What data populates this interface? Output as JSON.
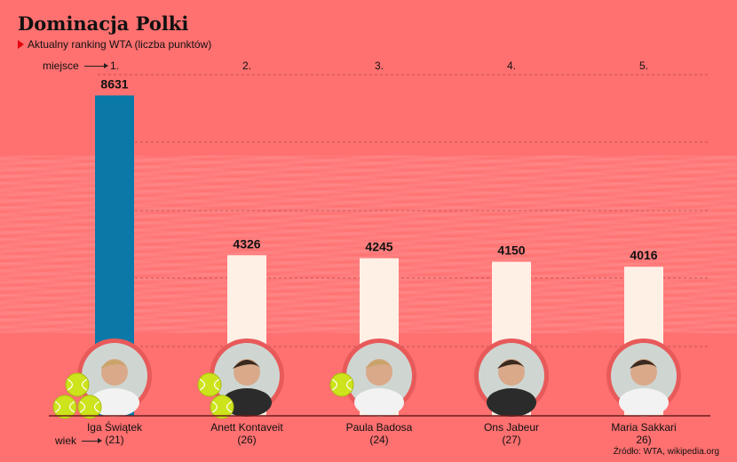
{
  "title": "Dominacja Polki",
  "subtitle": "Aktualny ranking WTA (liczba punktów)",
  "rank_label": "miejsce",
  "age_label": "wiek",
  "source": "Źródło: WTA, wikipedia.org",
  "colors": {
    "background": "#ff7070",
    "highlight_bar": "#0a79a8",
    "other_bar": "#fff0e6",
    "photo_ring": "#e85a5a",
    "ball": "#cde31b"
  },
  "chart_data": {
    "type": "bar",
    "title": "Dominacja Polki",
    "subtitle": "Aktualny ranking WTA (liczba punktów)",
    "categories": [
      "Iga Świątek",
      "Anett Kontaveit",
      "Paula Badosa",
      "Ons Jabeur",
      "Maria Sakkari"
    ],
    "ranks": [
      "1.",
      "2.",
      "3.",
      "4.",
      "5."
    ],
    "ages": [
      "(21)",
      "(26)",
      "(24)",
      "(27)",
      "26)"
    ],
    "values": [
      8631,
      4326,
      4245,
      4150,
      4016
    ],
    "value_labels": [
      "8631",
      "4326",
      "4245",
      "4150",
      "4016"
    ],
    "highlight_index": 0,
    "tennis_balls": [
      3,
      2,
      1,
      0,
      0
    ],
    "ylim": [
      0,
      9000
    ],
    "grid": true,
    "legend": "none"
  }
}
